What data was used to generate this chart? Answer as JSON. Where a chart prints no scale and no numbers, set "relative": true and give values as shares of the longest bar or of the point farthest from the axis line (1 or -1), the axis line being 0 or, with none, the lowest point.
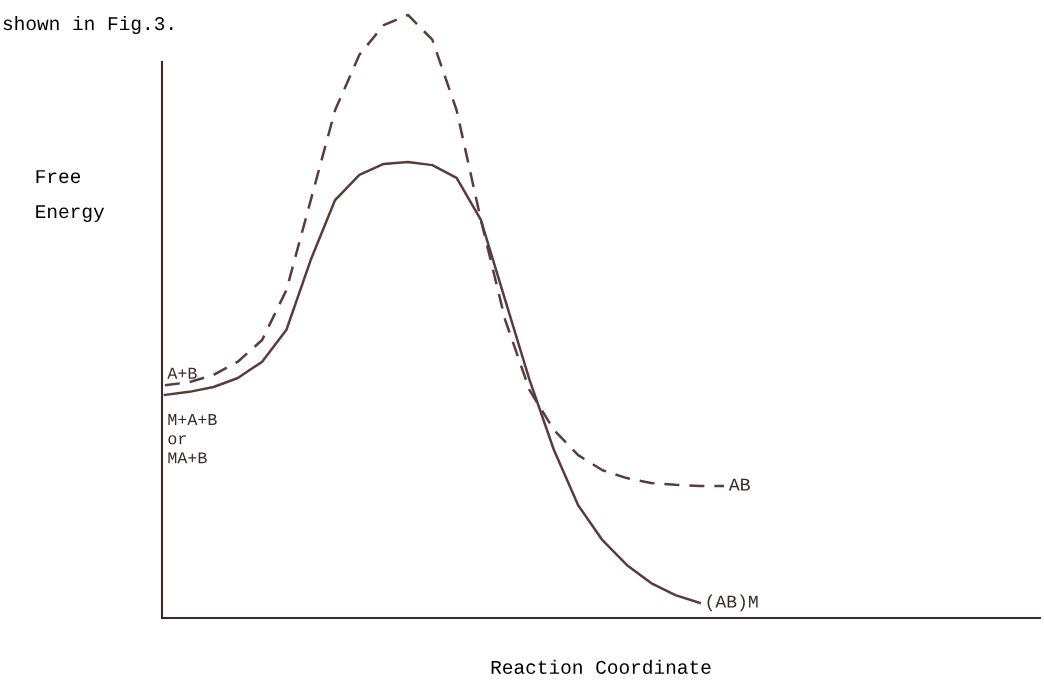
{
  "chart_data": {
    "type": "line",
    "relative": true,
    "ylabel": "Free\nEnergy",
    "xlabel": "Reaction Coordinate",
    "categories": [
      null,
      null,
      null,
      null,
      null,
      null,
      null,
      null,
      null,
      null,
      null,
      null,
      null,
      null,
      null,
      null,
      null,
      null,
      null,
      null,
      null,
      null,
      null,
      null
    ],
    "series": [
      {
        "name": "(AB)M",
        "color": "#5a3c3c",
        "line_style": "solid",
        "values": [
          0.37,
          0.375,
          0.383,
          0.398,
          0.425,
          0.478,
          0.594,
          0.693,
          0.735,
          0.753,
          0.756,
          0.751,
          0.73,
          0.66,
          0.527,
          0.395,
          0.279,
          0.187,
          0.129,
          0.088,
          0.058,
          0.038,
          0.025,
          null
        ]
      },
      {
        "name": "AB",
        "color": "#5a3c3c",
        "line_style": "dashed",
        "values": [
          0.386,
          0.391,
          0.403,
          0.425,
          0.461,
          0.544,
          0.693,
          0.842,
          0.934,
          0.983,
          1.0,
          0.959,
          0.842,
          0.66,
          0.494,
          0.378,
          0.312,
          0.27,
          0.245,
          0.232,
          0.224,
          0.221,
          0.219,
          0.219
        ]
      }
    ],
    "annotations": [
      "shown in Fig.3.",
      "A+B",
      "M+A+B\nor\nMA+B"
    ],
    "legend": false,
    "grid": false,
    "tick_labels": false
  }
}
